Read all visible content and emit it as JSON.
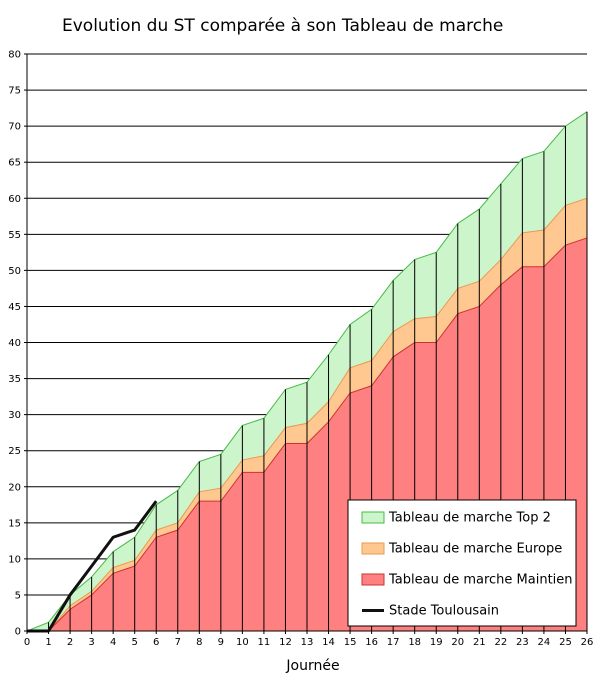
{
  "chart_data": {
    "type": "area",
    "title": "Evolution du ST comparée à son Tableau de marche",
    "xlabel": "Journée",
    "ylabel": "",
    "x": [
      0,
      1,
      2,
      3,
      4,
      5,
      6,
      7,
      8,
      9,
      10,
      11,
      12,
      13,
      14,
      15,
      16,
      17,
      18,
      19,
      20,
      21,
      22,
      23,
      24,
      25,
      26
    ],
    "xlim": [
      0,
      26
    ],
    "ylim": [
      0,
      80
    ],
    "yticks": [
      0,
      5,
      10,
      15,
      20,
      25,
      30,
      35,
      40,
      45,
      50,
      55,
      60,
      65,
      70,
      75,
      80
    ],
    "grid": "horizontal",
    "legend_position": "bottom-right",
    "stacked_series": [
      {
        "name": "Tableau de marche Maintien",
        "color": "#ff8080",
        "edge": "#cc3333",
        "values": [
          0,
          0,
          3,
          5,
          8,
          9,
          13,
          14,
          18,
          18,
          22,
          22,
          26,
          26,
          29,
          33,
          34,
          38,
          40,
          40,
          44,
          45,
          48,
          50.5,
          50.5,
          53.5,
          54.5
        ]
      },
      {
        "name": "Tableau de marche Europe",
        "color": "#ffc890",
        "edge": "#e89a50",
        "values": [
          0,
          0,
          3.5,
          5.5,
          8.8,
          9.8,
          14,
          15,
          19.3,
          19.8,
          23.7,
          24.3,
          28.2,
          28.8,
          31.8,
          36.5,
          37.5,
          41.5,
          43.3,
          43.6,
          47.5,
          48.5,
          51.5,
          55.2,
          55.6,
          59,
          60
        ]
      },
      {
        "name": "Tableau de marche Top 2",
        "color": "#ccf5cc",
        "edge": "#44bb44",
        "values": [
          0,
          1.2,
          5,
          7.5,
          11,
          13,
          17.5,
          19.5,
          23.5,
          24.5,
          28.5,
          29.5,
          33.5,
          34.5,
          38.3,
          42.5,
          44.6,
          48.6,
          51.5,
          52.5,
          56.5,
          58.5,
          62,
          65.5,
          66.5,
          70,
          72
        ]
      }
    ],
    "line_series": {
      "name": "Stade Toulousain",
      "color": "#111111",
      "x": [
        0,
        1,
        2,
        3,
        4,
        5,
        6
      ],
      "values": [
        0,
        0,
        5,
        9,
        13,
        14,
        18
      ]
    }
  }
}
